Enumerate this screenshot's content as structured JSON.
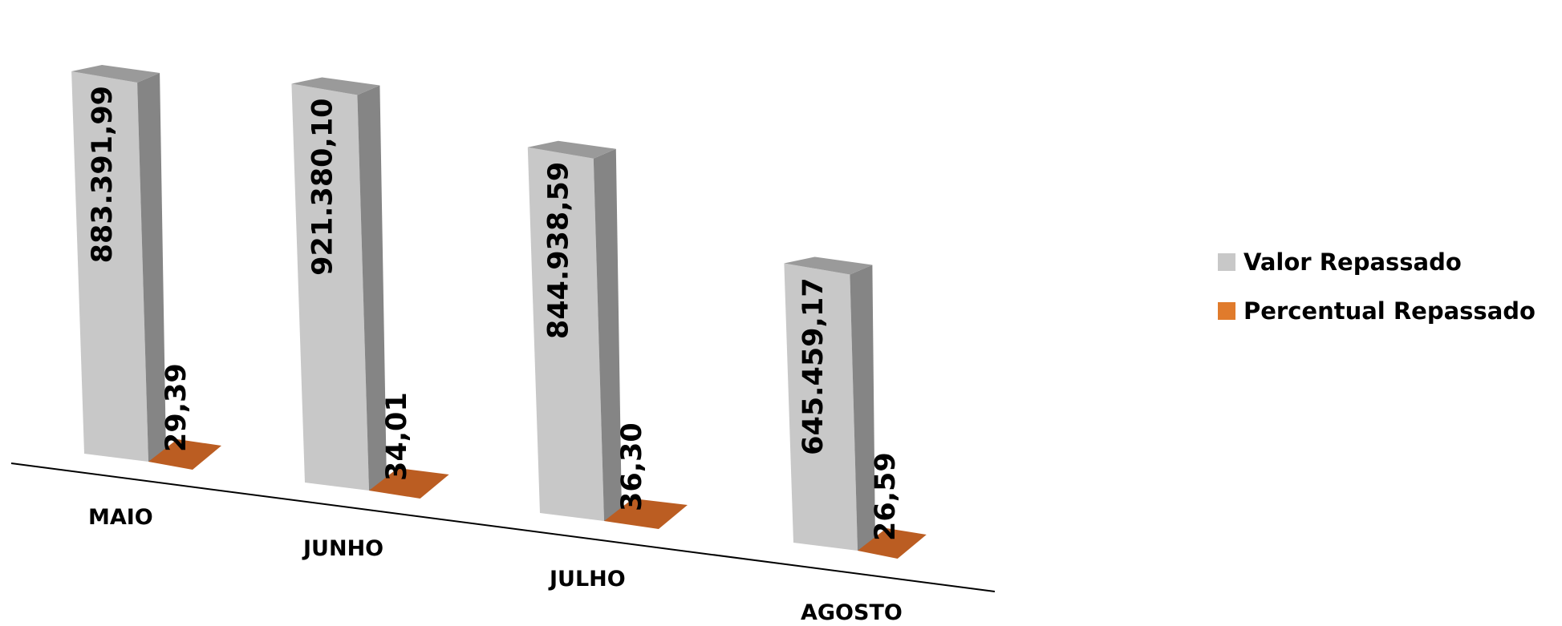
{
  "chart_data": {
    "type": "bar",
    "categories": [
      "MAIO",
      "JUNHO",
      "JULHO",
      "AGOSTO"
    ],
    "series": [
      {
        "name": "Valor Repassado",
        "values": [
          883391.99,
          921380.1,
          844938.59,
          645459.17
        ],
        "labels": [
          "883.391,99",
          "921.380,10",
          "844.938,59",
          "645.459,17"
        ],
        "color": "#c8c8c8"
      },
      {
        "name": "Percentual Repassado",
        "values": [
          29.39,
          34.01,
          36.3,
          26.59
        ],
        "labels": [
          "29,39",
          "34,01",
          "36,30",
          "26,59"
        ],
        "color": "#e07b2c"
      }
    ],
    "title": "",
    "xlabel": "",
    "ylabel": "",
    "grid": false,
    "legend_position": "right",
    "style": "3d-column"
  }
}
